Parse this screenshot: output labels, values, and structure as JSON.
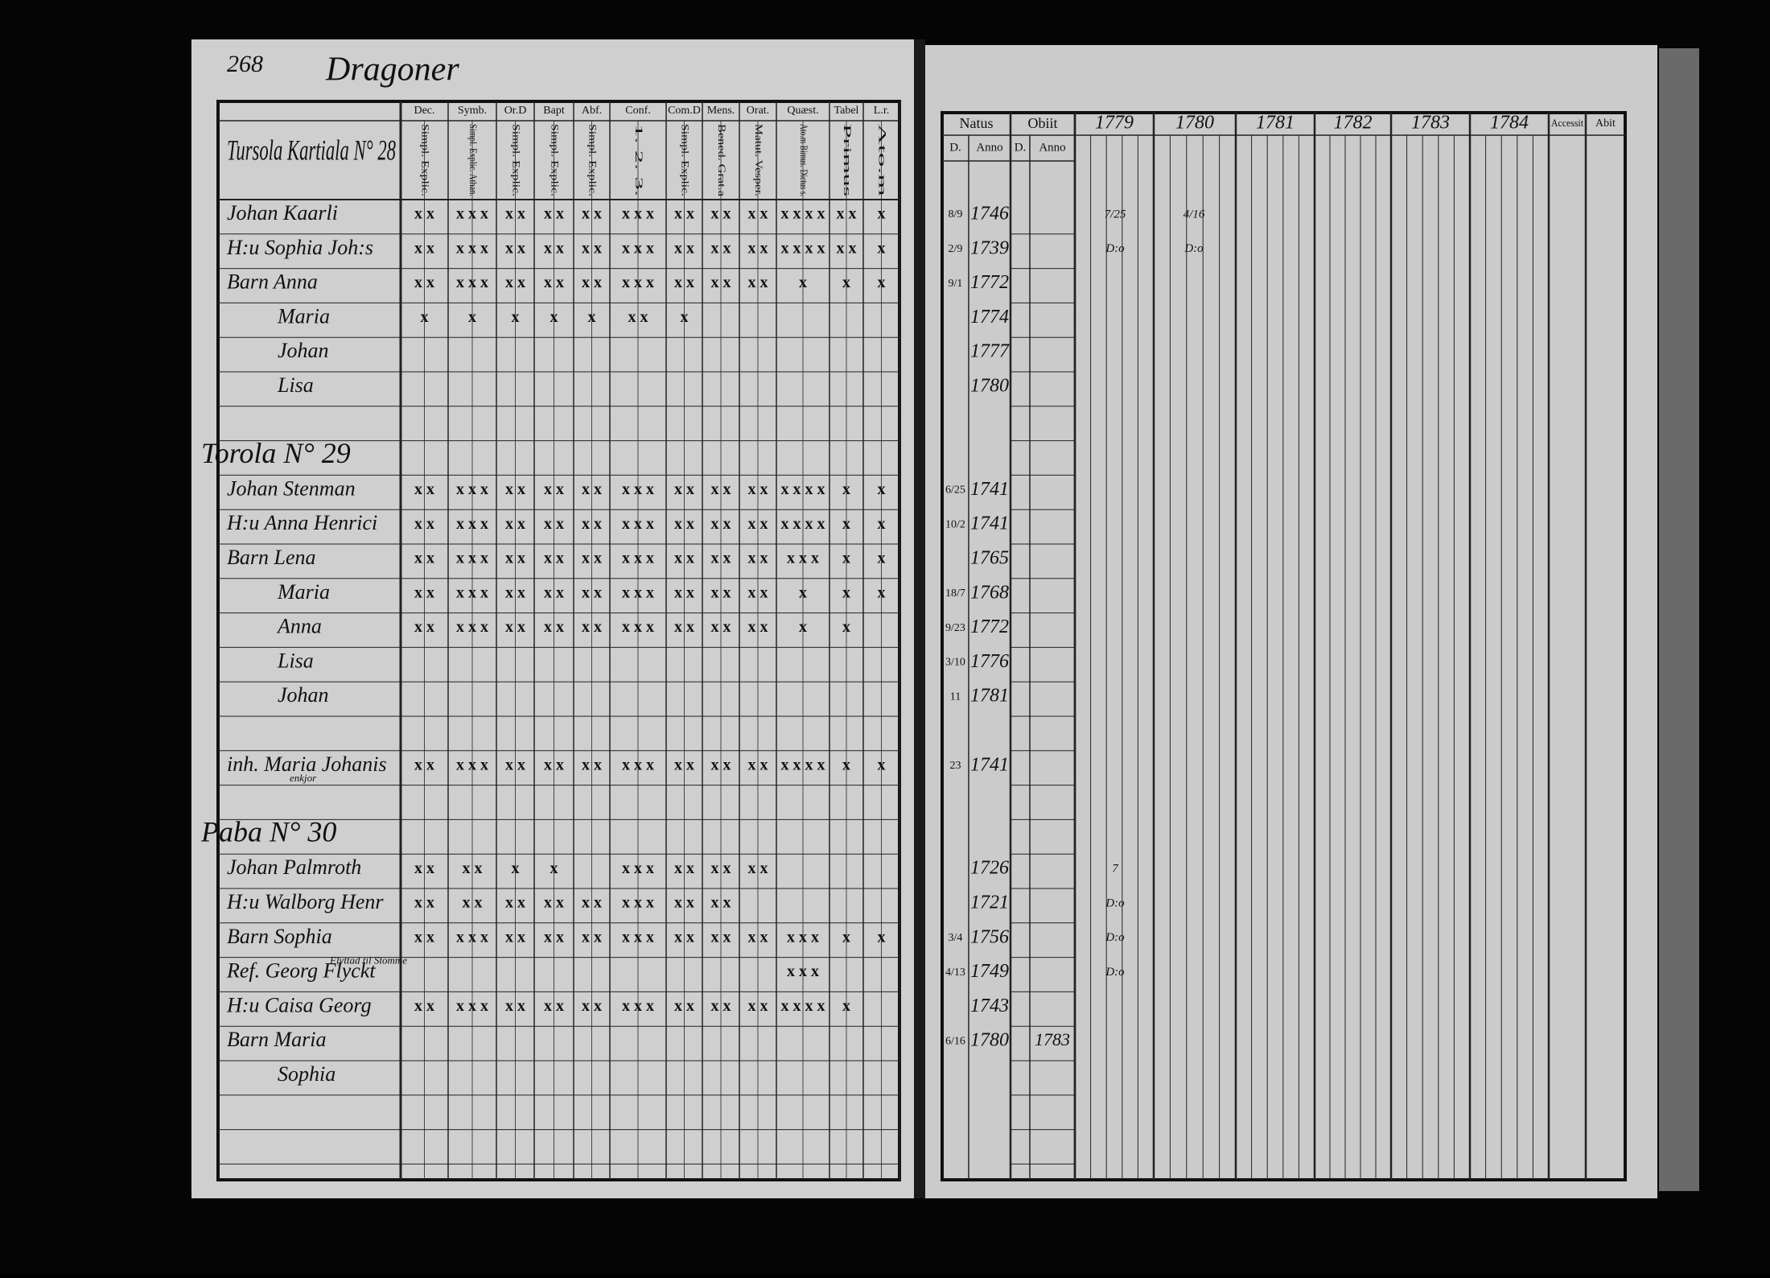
{
  "header": {
    "page_number": "268",
    "title": "Dragoner"
  },
  "left_table": {
    "columns": [
      {
        "label": "Dec.",
        "sub": "Simpl. Explic."
      },
      {
        "label": "Symb.",
        "sub": "Simpl. Explic. Athan."
      },
      {
        "label": "Or.D",
        "sub": "Simpl. Explic."
      },
      {
        "label": "Bapt",
        "sub": "Simpl. Explic."
      },
      {
        "label": "Abf.",
        "sub": "Simpl. Explic."
      },
      {
        "label": "Conf.",
        "sub": "1. 2. 3."
      },
      {
        "label": "Com.D",
        "sub": "Simpl. Explic."
      },
      {
        "label": "Mens.",
        "sub": "Bened. Grat.a"
      },
      {
        "label": "Orat.",
        "sub": "Matut. Vesper."
      },
      {
        "label": "Quæst.",
        "sub": "Ato.m Bimus. Dictus s."
      },
      {
        "label": "Tabel",
        "sub": "Primus"
      },
      {
        "label": "L.r.",
        "sub": "Ato.m"
      }
    ]
  },
  "right_table": {
    "natus": "Natus",
    "natus_sub": [
      "D.",
      "Anno"
    ],
    "obiit": "Obiit",
    "obiit_sub": [
      "D.",
      "Anno"
    ],
    "years": [
      "1779",
      "1780",
      "1781",
      "1782",
      "1783",
      "1784"
    ],
    "accessit": "Accessit",
    "abit": "Abit"
  },
  "households": [
    {
      "heading": "Tursola Kartiala N° 28",
      "members": [
        {
          "name": "Johan Kaarli",
          "day": "8/9",
          "year": "1746",
          "marks": [
            "x x",
            "x x x",
            "x x",
            "x x",
            "x x",
            "x x x",
            "x x",
            "x x",
            "x x",
            "x x x x",
            "x x",
            "x"
          ],
          "yearly": [
            "7/25",
            "4/16",
            null,
            null,
            null,
            null
          ]
        },
        {
          "name": "H:u Sophia Joh:s",
          "day": "2/9",
          "year": "1739",
          "marks": [
            "x x",
            "x x x",
            "x x",
            "x x",
            "x x",
            "x x x",
            "x x",
            "x x",
            "x x",
            "x x x x",
            "x x",
            "x"
          ],
          "yearly": [
            "D:o",
            "D:o",
            null,
            null,
            null,
            null
          ]
        },
        {
          "name": "Barn Anna",
          "day": "9/1",
          "year": "1772",
          "marks": [
            "x x",
            "x x x",
            "x x",
            "x x",
            "x x",
            "x x x",
            "x x",
            "x x",
            "x x",
            "x",
            "x",
            "x"
          ]
        },
        {
          "name": "Maria",
          "year": "1774",
          "marks": [
            "x",
            "x",
            "x",
            "x",
            "x",
            "x x",
            "x",
            null,
            null,
            null,
            null,
            null
          ]
        },
        {
          "name": "Johan",
          "year": "1777"
        },
        {
          "name": "Lisa",
          "year": "1780"
        }
      ]
    },
    {
      "heading": "Torola N° 29",
      "members": [
        {
          "name": "Johan Stenman",
          "day": "6/25",
          "year": "1741",
          "marks": [
            "x x",
            "x x x",
            "x x",
            "x x",
            "x x",
            "x x x",
            "x x",
            "x x",
            "x x",
            "x x x x",
            "x",
            "x"
          ]
        },
        {
          "name": "H:u Anna Henrici",
          "day": "10/2",
          "year": "1741",
          "marks": [
            "x x",
            "x x x",
            "x x",
            "x x",
            "x x",
            "x x x",
            "x x",
            "x x",
            "x x",
            "x x x x",
            "x",
            "x"
          ]
        },
        {
          "name": "Barn Lena",
          "year": "1765",
          "marks": [
            "x x",
            "x x x",
            "x x",
            "x x",
            "x x",
            "x x x",
            "x x",
            "x x",
            "x x",
            "x x x",
            "x",
            "x"
          ]
        },
        {
          "name": "Maria",
          "day": "18/7",
          "year": "1768",
          "marks": [
            "x x",
            "x x x",
            "x x",
            "x x",
            "x x",
            "x x x",
            "x x",
            "x x",
            "x x",
            "x",
            "x",
            "x"
          ]
        },
        {
          "name": "Anna",
          "day": "9/23",
          "year": "1772",
          "marks": [
            "x x",
            "x x x",
            "x x",
            "x x",
            "x x",
            "x x x",
            "x x",
            "x x",
            "x x",
            "x",
            "x",
            null
          ]
        },
        {
          "name": "Lisa",
          "day": "3/10",
          "year": "1776"
        },
        {
          "name": "Johan",
          "day": "11",
          "year": "1781"
        }
      ]
    },
    {
      "members": [
        {
          "name": "inh. Maria Johanis",
          "note": "enkjor",
          "day": "23",
          "year": "1741",
          "marks": [
            "x x",
            "x x x",
            "x x",
            "x x",
            "x x",
            "x x x",
            "x x",
            "x x",
            "x x",
            "x x x x",
            "x",
            "x"
          ]
        }
      ]
    },
    {
      "heading": "Paba N° 30",
      "members": [
        {
          "name": "Johan Palmroth",
          "year": "1726",
          "marks": [
            "x x",
            "x x",
            "x",
            "x",
            null,
            "x x x",
            "x x",
            "x x",
            "x x",
            null,
            null,
            null
          ],
          "yearly": [
            "7",
            null,
            null,
            null,
            null,
            null
          ]
        },
        {
          "name": "H:u Walborg Henr",
          "year": "1721",
          "marks": [
            "x x",
            "x x",
            "x x",
            "x x",
            "x x",
            "x x x",
            "x x",
            "x x",
            null,
            null,
            null,
            null
          ],
          "yearly": [
            "D:o",
            null,
            null,
            null,
            null,
            null
          ]
        },
        {
          "name": "Barn Sophia",
          "day": "3/4",
          "year": "1756",
          "marks": [
            "x x",
            "x x x",
            "x x",
            "x x",
            "x x",
            "x x x",
            "x x",
            "x x",
            "x x",
            "x x x",
            "x",
            "x"
          ],
          "yearly": [
            "D:o",
            null,
            null,
            null,
            null,
            null
          ]
        },
        {
          "name": "Ref. Georg Flyckt",
          "note": "Flyttad til Stomme",
          "day": "4/13",
          "year": "1749",
          "marks": [
            null,
            null,
            null,
            null,
            null,
            null,
            null,
            null,
            null,
            "x x x",
            null,
            null
          ],
          "yearly": [
            "D:o",
            null,
            null,
            null,
            null,
            null
          ]
        },
        {
          "name": "H:u Caisa Georg",
          "year": "1743",
          "marks": [
            "x x",
            "x x x",
            "x x",
            "x x",
            "x x",
            "x x x",
            "x x",
            "x x",
            "x x",
            "x x x x",
            "x",
            null
          ]
        },
        {
          "name": "Barn Maria",
          "day": "6/16",
          "year": "1780",
          "obiit": "1783"
        },
        {
          "name": "Sophia"
        }
      ]
    }
  ]
}
